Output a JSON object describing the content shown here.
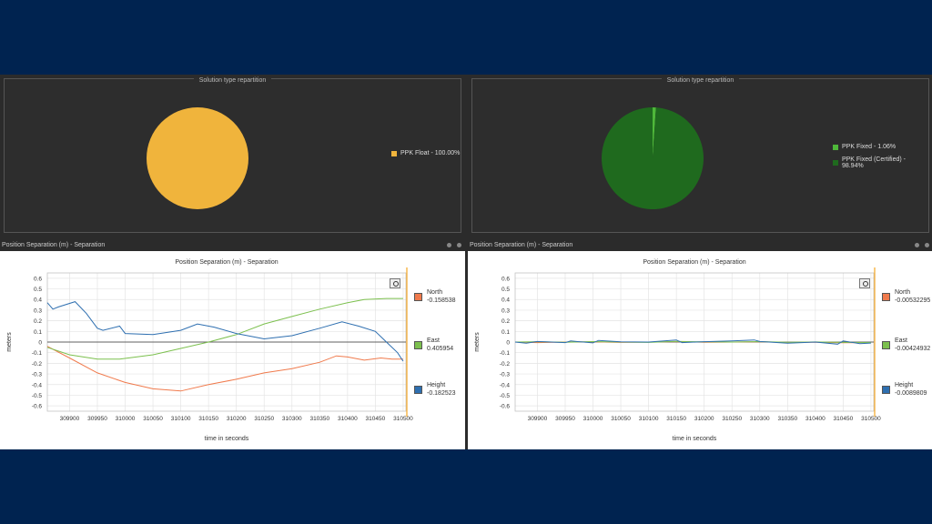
{
  "left": {
    "pie_title": "Solution type repartition",
    "pie_legend": [
      {
        "label": "PPK Float - 100.00%",
        "color": "#f0b43c"
      }
    ],
    "pie_slices": [
      1.0
    ],
    "panel_header": "Position Separation (m) - Separation",
    "chart_title": "Position Separation (m) - Separation",
    "legend": {
      "north": {
        "name": "North",
        "value": "-0.158538"
      },
      "east": {
        "name": "East",
        "value": "0.405954"
      },
      "height": {
        "name": "Height",
        "value": "-0.182523"
      }
    }
  },
  "right": {
    "pie_title": "Solution type repartition",
    "pie_legend": [
      {
        "label": "PPK Fixed - 1.06%",
        "color": "#4fb83a"
      },
      {
        "label": "PPK Fixed (Certified) - 98.94%",
        "color": "#1f6a1e"
      }
    ],
    "pie_slices": [
      0.0106,
      0.9894
    ],
    "panel_header": "Position Separation (m) - Separation",
    "chart_title": "Position Separation (m) - Separation",
    "legend": {
      "north": {
        "name": "North",
        "value": "-0.00532295"
      },
      "east": {
        "name": "East",
        "value": "-0.00424932"
      },
      "height": {
        "name": "Height",
        "value": "-0.0089809"
      }
    }
  },
  "colors": {
    "north": "#f07a4c",
    "east": "#7cc04e",
    "height": "#2e6fb0",
    "zero": "#333333",
    "cursor": "#f5a623"
  },
  "chart_data": [
    {
      "type": "line",
      "title": "Position Separation (m) - Separation",
      "xlabel": "time in seconds",
      "ylabel": "meters",
      "xlim": [
        309860,
        310505
      ],
      "ylim": [
        -0.65,
        0.65
      ],
      "xticks": [
        "309900",
        "309950",
        "310000",
        "310050",
        "310100",
        "310150",
        "310200",
        "310250",
        "310300",
        "310350",
        "310400",
        "310450",
        "310500"
      ],
      "yticks": [
        "0.6",
        "0.5",
        "0.4",
        "0.3",
        "0.2",
        "0.1",
        "0",
        "-0.1",
        "-0.2",
        "-0.3",
        "-0.4",
        "-0.5",
        "-0.6"
      ],
      "series": [
        {
          "name": "North",
          "x": [
            309860,
            309900,
            309950,
            310000,
            310050,
            310100,
            310150,
            310200,
            310250,
            310300,
            310350,
            310380,
            310400,
            310430,
            310460,
            310480,
            310500
          ],
          "y": [
            -0.04,
            -0.15,
            -0.29,
            -0.38,
            -0.44,
            -0.46,
            -0.4,
            -0.35,
            -0.29,
            -0.25,
            -0.19,
            -0.13,
            -0.14,
            -0.17,
            -0.15,
            -0.16,
            -0.16
          ]
        },
        {
          "name": "East",
          "x": [
            309860,
            309900,
            309950,
            309990,
            310050,
            310100,
            310150,
            310200,
            310250,
            310300,
            310350,
            310400,
            310430,
            310470,
            310500
          ],
          "y": [
            -0.05,
            -0.12,
            -0.16,
            -0.16,
            -0.12,
            -0.06,
            0.0,
            0.07,
            0.17,
            0.24,
            0.31,
            0.37,
            0.4,
            0.41,
            0.41
          ]
        },
        {
          "name": "Height",
          "x": [
            309860,
            309870,
            309880,
            309910,
            309930,
            309950,
            309960,
            309990,
            310000,
            310050,
            310100,
            310130,
            310160,
            310200,
            310250,
            310300,
            310350,
            310390,
            310420,
            310450,
            310470,
            310490,
            310500
          ],
          "y": [
            0.37,
            0.31,
            0.33,
            0.38,
            0.27,
            0.13,
            0.11,
            0.15,
            0.08,
            0.07,
            0.11,
            0.17,
            0.14,
            0.08,
            0.03,
            0.06,
            0.13,
            0.19,
            0.15,
            0.1,
            0.0,
            -0.1,
            -0.18
          ]
        }
      ]
    },
    {
      "type": "line",
      "title": "Position Separation (m) - Separation",
      "xlabel": "time in seconds",
      "ylabel": "meters",
      "xlim": [
        309860,
        310505
      ],
      "ylim": [
        -0.65,
        0.65
      ],
      "xticks": [
        "309900",
        "309950",
        "310000",
        "310050",
        "310100",
        "310150",
        "310200",
        "310250",
        "310300",
        "310350",
        "310400",
        "310450",
        "310500"
      ],
      "yticks": [
        "0.6",
        "0.5",
        "0.4",
        "0.3",
        "0.2",
        "0.1",
        "0",
        "-0.1",
        "-0.2",
        "-0.3",
        "-0.4",
        "-0.5",
        "-0.6"
      ],
      "series": [
        {
          "name": "North",
          "x": [
            309860,
            309900,
            309950,
            310000,
            310050,
            310100,
            310150,
            310200,
            310250,
            310300,
            310350,
            310400,
            310450,
            310500
          ],
          "y": [
            0.0,
            -0.005,
            0.0,
            0.002,
            -0.003,
            0.0,
            0.004,
            -0.002,
            0.0,
            0.003,
            -0.004,
            -0.002,
            -0.006,
            -0.005
          ]
        },
        {
          "name": "East",
          "x": [
            309860,
            309900,
            309950,
            310000,
            310050,
            310100,
            310150,
            310200,
            310250,
            310300,
            310350,
            310400,
            310450,
            310500
          ],
          "y": [
            0.0,
            0.003,
            -0.002,
            0.004,
            0.0,
            -0.003,
            0.006,
            0.002,
            0.0,
            0.004,
            -0.002,
            0.001,
            -0.003,
            -0.004
          ]
        },
        {
          "name": "Height",
          "x": [
            309860,
            309880,
            309900,
            309950,
            309960,
            310000,
            310010,
            310050,
            310100,
            310150,
            310160,
            310200,
            310250,
            310290,
            310300,
            310350,
            310400,
            310440,
            310450,
            310480,
            310500
          ],
          "y": [
            0.0,
            -0.01,
            0.005,
            -0.005,
            0.01,
            -0.008,
            0.015,
            0.002,
            0.0,
            0.02,
            -0.005,
            0.003,
            0.01,
            0.02,
            0.005,
            -0.01,
            0.0,
            -0.02,
            0.01,
            -0.015,
            -0.009
          ]
        }
      ]
    }
  ]
}
